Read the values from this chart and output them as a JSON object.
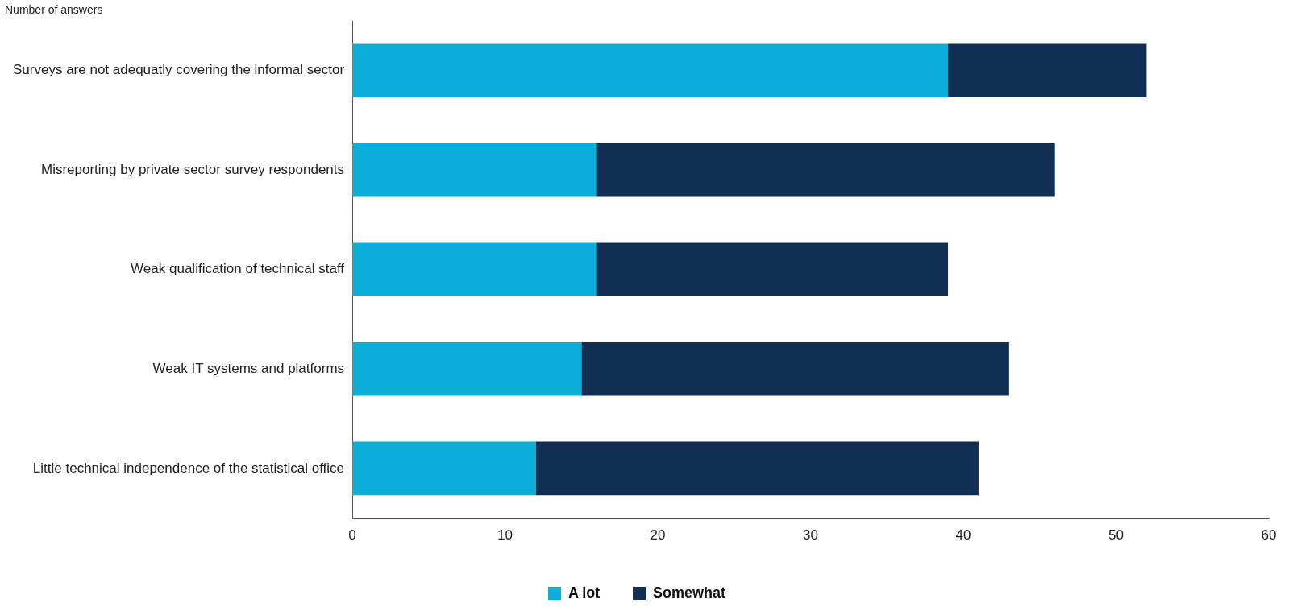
{
  "chart_data": {
    "type": "bar",
    "orientation": "horizontal",
    "stacked": true,
    "xlabel": "Number of answers",
    "categories": [
      "Surveys are not adequatly covering the informal sector",
      "Misreporting by private sector survey respondents",
      "Weak qualification of technical staff",
      "Weak IT systems and platforms",
      "Little technical independence of the statistical office"
    ],
    "series": [
      {
        "name": "A lot",
        "color": "#0badd9",
        "values": [
          39,
          16,
          16,
          15,
          12
        ]
      },
      {
        "name": "Somewhat",
        "color": "#112f52",
        "values": [
          13,
          30,
          23,
          28,
          29
        ]
      }
    ],
    "xlim": [
      0,
      60
    ],
    "xticks": [
      0,
      10,
      20,
      30,
      40,
      50,
      60
    ],
    "grid": false,
    "legend": "bottom"
  }
}
